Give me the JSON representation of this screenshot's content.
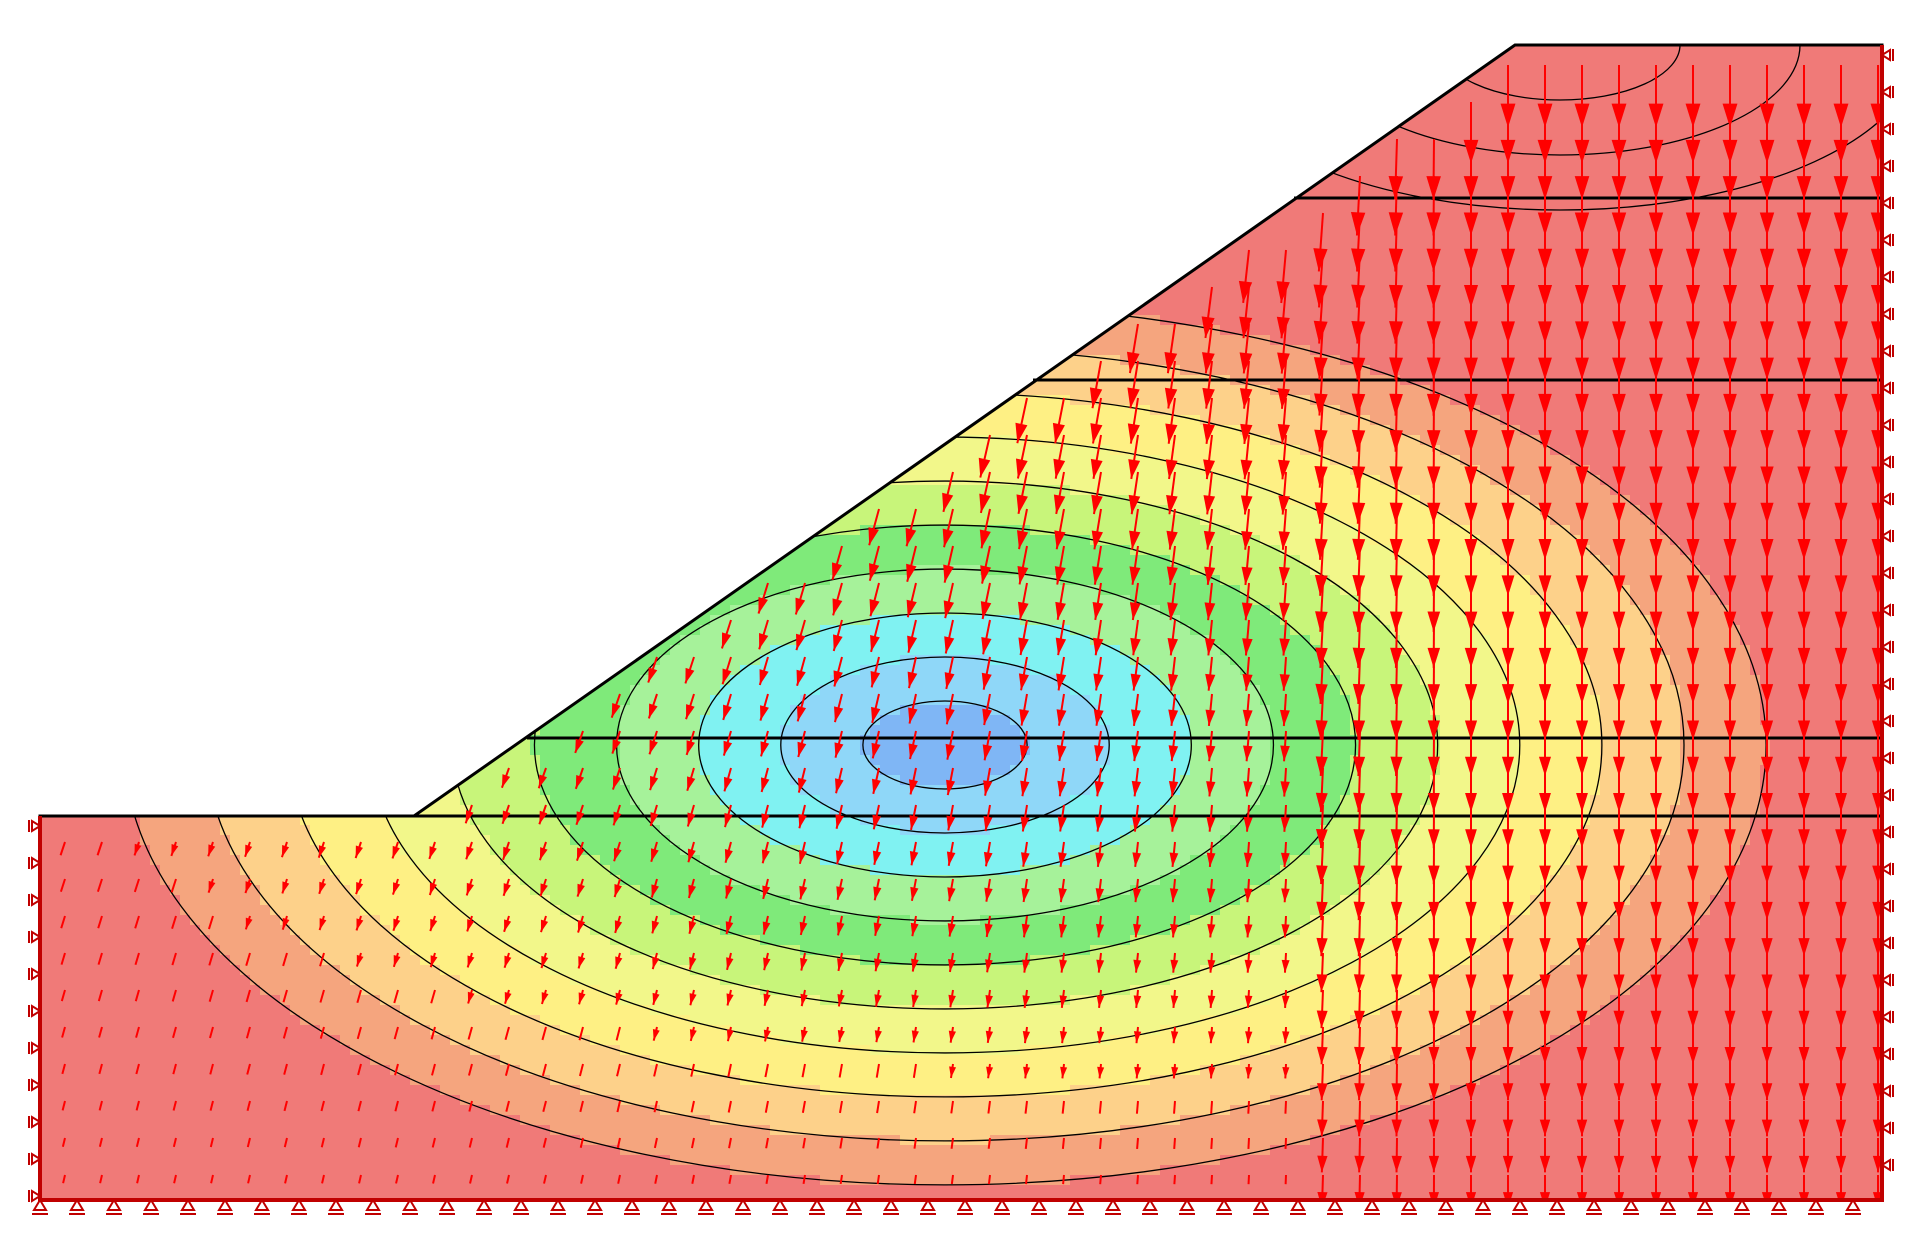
{
  "figure": {
    "type": "slope-stability-finite-element-plot",
    "shown": [
      "contour-fill",
      "contour-lines",
      "displacement-vectors",
      "material-boundaries",
      "boundary-supports"
    ]
  },
  "colors": {
    "background": "#ffffff",
    "outline": "#000000",
    "contour_line": "#000000",
    "vector": "#ff0000",
    "boundary_frame": "#c00000",
    "support_symbol": "#c00000",
    "palette_low_to_high": [
      "#7fb6f5",
      "#8fd7f8",
      "#80f2f2",
      "#a6f29a",
      "#7fea7a",
      "#c8f57a",
      "#f2f78a",
      "#fef084",
      "#fdd18a",
      "#f5a57e",
      "#f07a78"
    ]
  },
  "icons": {
    "roller_support": "roller-support-icon",
    "pin_support": "pin-support-icon"
  }
}
